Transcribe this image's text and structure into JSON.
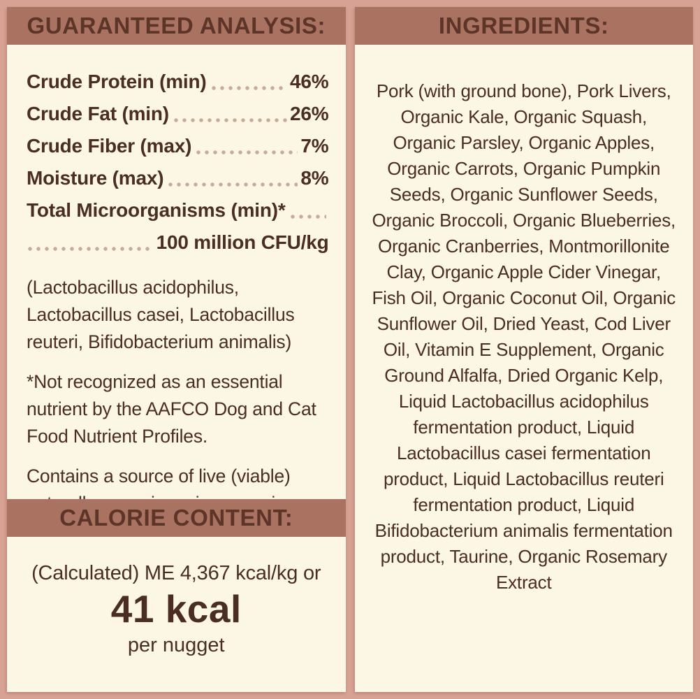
{
  "palette": {
    "background_pink": "#d7a294",
    "panel_cream": "#fcf6e4",
    "bar_brown": "#aa7260",
    "bar_text_brown": "#5d3428",
    "body_text_brown": "#4a2d23",
    "dot_leader": "#c7ac99"
  },
  "left": {
    "header": "GUARANTEED ANALYSIS:",
    "rows": [
      {
        "label": "Crude Protein (min)",
        "value": "46%"
      },
      {
        "label": "Crude Fat (min)",
        "value": "26%"
      },
      {
        "label": "Crude Fiber (max)",
        "value": "7%"
      },
      {
        "label": "Moisture (max)",
        "value": "8%"
      }
    ],
    "micro_label": "Total Microorganisms (min)*",
    "micro_value": "100 million CFU/kg",
    "paragraphs": [
      "(Lactobacillus acidophilus, Lactobacillus casei, Lactobacillus reuteri, Bifidobacterium animalis)",
      "*Not recognized as an essential nutrient by the AAFCO Dog and Cat Food Nutrient Profiles.",
      "Contains a source of live (viable) naturally occurring microorganisms"
    ],
    "calorie_header": "CALORIE CONTENT:",
    "calorie_line1": "(Calculated) ME 4,367 kcal/kg or",
    "calorie_value": "41 kcal",
    "calorie_line3": "per nugget"
  },
  "right": {
    "header": "INGREDIENTS:",
    "ingredients": "Pork (with ground bone), Pork Livers, Organic Kale, Organic Squash, Organic Parsley, Organic Apples, Organic Carrots, Organic Pumpkin Seeds, Organic Sunflower Seeds, Organic Broccoli, Organic Blueberries, Organic Cranberries, Montmorillonite Clay, Organic Apple Cider Vinegar, Fish Oil, Organic Coconut Oil, Organic Sunflower Oil, Dried Yeast, Cod Liver Oil, Vitamin E Supplement, Organic Ground Alfalfa, Dried Organic Kelp, Liquid Lactobacillus acidophilus fermentation product, Liquid Lactobacillus casei fermentation product, Liquid Lactobacillus reuteri fermentation product, Liquid Bifidobacterium animalis fermentation product, Taurine, Organic Rosemary Extract"
  }
}
